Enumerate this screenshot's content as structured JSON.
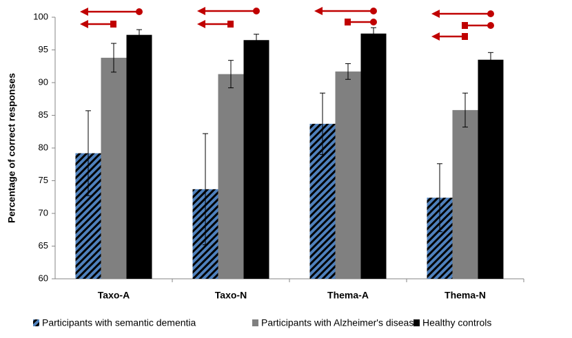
{
  "chart_data": {
    "type": "bar",
    "y_label": "Percentage of correct responses",
    "categories": [
      "Taxo-A",
      "Taxo-N",
      "Thema-A",
      "Thema-N"
    ],
    "series": [
      {
        "name": "Participants with semantic dementia",
        "color": "#4f81bd",
        "hatch": true,
        "values": [
          79.2,
          73.7,
          83.7,
          72.4
        ],
        "errors": [
          6.5,
          8.5,
          4.7,
          5.2
        ]
      },
      {
        "name": "Participants with Alzheimer's disease",
        "color": "#808080",
        "values": [
          93.8,
          91.3,
          91.7,
          85.8
        ],
        "errors": [
          2.2,
          2.1,
          1.2,
          2.6
        ]
      },
      {
        "name": "Healthy controls",
        "color": "#000000",
        "values": [
          97.3,
          96.5,
          97.5,
          93.5
        ],
        "errors": [
          0.8,
          0.9,
          0.9,
          1.1
        ]
      }
    ],
    "ylim": [
      60,
      100
    ],
    "yticks": [
      60,
      65,
      70,
      75,
      80,
      85,
      90,
      95,
      100
    ],
    "grid": false,
    "legend": "bottom"
  }
}
